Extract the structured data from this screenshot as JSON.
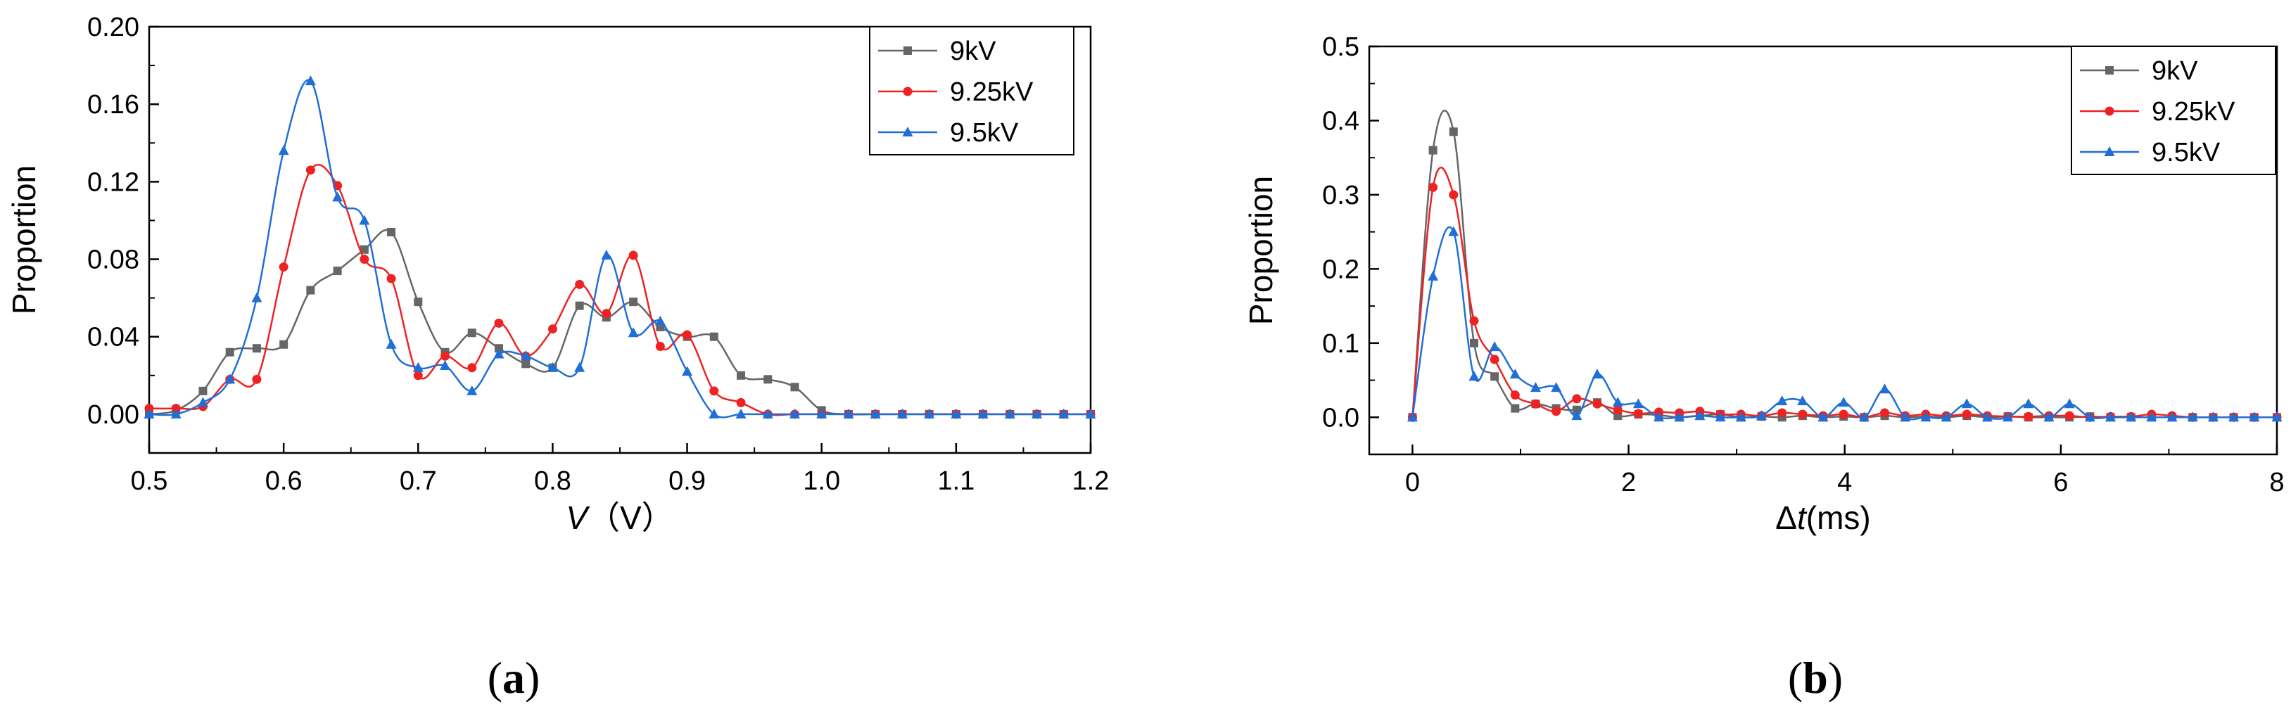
{
  "chart_data": [
    {
      "panel_label": "(a)",
      "panel_letter": "a",
      "type": "line",
      "xlabel_italic": "V",
      "xlabel_unit": "（V）",
      "ylabel": "Proportion",
      "xlim": [
        0.5,
        1.2
      ],
      "ylim": [
        -0.02,
        0.2
      ],
      "xticks": [
        0.5,
        0.6,
        0.7,
        0.8,
        0.9,
        1.0,
        1.1,
        1.2
      ],
      "xtick_labels": [
        "0.5",
        "0.6",
        "0.7",
        "0.8",
        "0.9",
        "1.0",
        "1.1",
        "1.2"
      ],
      "yticks": [
        0.0,
        0.04,
        0.08,
        0.12,
        0.16,
        0.2
      ],
      "ytick_labels": [
        "0.00",
        "0.04",
        "0.08",
        "0.12",
        "0.16",
        "0.20"
      ],
      "legend_position": "top-right",
      "series": [
        {
          "name": "9kV",
          "color": "#666666",
          "marker": "square",
          "x": [
            0.5,
            0.52,
            0.54,
            0.56,
            0.58,
            0.6,
            0.62,
            0.64,
            0.66,
            0.68,
            0.7,
            0.72,
            0.74,
            0.76,
            0.78,
            0.8,
            0.82,
            0.84,
            0.86,
            0.88,
            0.9,
            0.92,
            0.94,
            0.96,
            0.98,
            1.0,
            1.02,
            1.04,
            1.06,
            1.08,
            1.1,
            1.12,
            1.14,
            1.16,
            1.18,
            1.2
          ],
          "y": [
            0.0,
            0.002,
            0.012,
            0.032,
            0.034,
            0.036,
            0.064,
            0.074,
            0.085,
            0.094,
            0.058,
            0.032,
            0.042,
            0.034,
            0.026,
            0.024,
            0.056,
            0.05,
            0.058,
            0.045,
            0.04,
            0.04,
            0.02,
            0.018,
            0.014,
            0.002,
            0,
            0,
            0,
            0,
            0,
            0,
            0,
            0,
            0,
            0
          ]
        },
        {
          "name": "9.25kV",
          "color": "#ee2222",
          "marker": "circle",
          "x": [
            0.5,
            0.52,
            0.54,
            0.56,
            0.58,
            0.6,
            0.62,
            0.64,
            0.66,
            0.68,
            0.7,
            0.72,
            0.74,
            0.76,
            0.78,
            0.8,
            0.82,
            0.84,
            0.86,
            0.88,
            0.9,
            0.92,
            0.94,
            0.96,
            0.98,
            1.0,
            1.02,
            1.04,
            1.06,
            1.08,
            1.1,
            1.12,
            1.14,
            1.16,
            1.18,
            1.2
          ],
          "y": [
            0.003,
            0.003,
            0.004,
            0.018,
            0.018,
            0.076,
            0.126,
            0.118,
            0.08,
            0.07,
            0.02,
            0.03,
            0.024,
            0.047,
            0.03,
            0.044,
            0.067,
            0.052,
            0.082,
            0.035,
            0.041,
            0.012,
            0.006,
            0,
            0,
            0,
            0,
            0,
            0,
            0,
            0,
            0,
            0,
            0,
            0,
            0
          ]
        },
        {
          "name": "9.5kV",
          "color": "#1f6fd6",
          "marker": "triangle",
          "x": [
            0.5,
            0.52,
            0.54,
            0.56,
            0.58,
            0.6,
            0.62,
            0.64,
            0.66,
            0.68,
            0.7,
            0.72,
            0.74,
            0.76,
            0.78,
            0.8,
            0.82,
            0.84,
            0.86,
            0.88,
            0.9,
            0.92,
            0.94,
            0.96,
            0.98,
            1.0,
            1.02,
            1.04,
            1.06,
            1.08,
            1.1,
            1.12,
            1.14,
            1.16,
            1.18,
            1.2
          ],
          "y": [
            0.0,
            0.0,
            0.006,
            0.018,
            0.06,
            0.136,
            0.172,
            0.112,
            0.1,
            0.036,
            0.024,
            0.025,
            0.012,
            0.031,
            0.03,
            0.024,
            0.024,
            0.082,
            0.042,
            0.048,
            0.022,
            0.0,
            0,
            0,
            0,
            0,
            0,
            0,
            0,
            0,
            0,
            0,
            0,
            0,
            0,
            0
          ]
        }
      ]
    },
    {
      "panel_label": "(b)",
      "panel_letter": "b",
      "type": "line",
      "xlabel_italic": "t",
      "xlabel_prefix": "Δ",
      "xlabel_unit": "(ms)",
      "ylabel": "Proportion",
      "xlim": [
        -0.4,
        8
      ],
      "ylim": [
        -0.05,
        0.5
      ],
      "xticks": [
        0,
        2,
        4,
        6,
        8
      ],
      "xtick_labels": [
        "0",
        "2",
        "4",
        "6",
        "8"
      ],
      "yticks": [
        0.0,
        0.1,
        0.2,
        0.3,
        0.4,
        0.5
      ],
      "ytick_labels": [
        "0.0",
        "0.1",
        "0.2",
        "0.3",
        "0.4",
        "0.5"
      ],
      "legend_position": "top-right",
      "series": [
        {
          "name": "9kV",
          "color": "#666666",
          "marker": "square",
          "x": [
            0,
            0.19,
            0.38,
            0.57,
            0.76,
            0.95,
            1.14,
            1.33,
            1.52,
            1.71,
            1.9,
            2.09,
            2.28,
            2.47,
            2.66,
            2.85,
            3.04,
            3.23,
            3.42,
            3.61,
            3.8,
            3.99,
            4.18,
            4.37,
            4.56,
            4.75,
            4.94,
            5.13,
            5.32,
            5.51,
            5.7,
            5.89,
            6.08,
            6.27,
            6.46,
            6.65,
            6.84,
            7.03,
            7.22,
            7.41,
            7.6,
            7.79,
            8.0
          ],
          "y": [
            0,
            0.36,
            0.385,
            0.1,
            0.055,
            0.012,
            0.018,
            0.012,
            0.01,
            0.02,
            0.002,
            0.004,
            0.003,
            0,
            0.002,
            0.004,
            0,
            0.001,
            0,
            0.002,
            0,
            0.001,
            0,
            0.002,
            0,
            0.001,
            0,
            0.002,
            0,
            0.001,
            0,
            0,
            0,
            0.001,
            0,
            0,
            0,
            0,
            0,
            0,
            0,
            0,
            0
          ]
        },
        {
          "name": "9.25kV",
          "color": "#ee2222",
          "marker": "circle",
          "x": [
            0,
            0.19,
            0.38,
            0.57,
            0.76,
            0.95,
            1.14,
            1.33,
            1.52,
            1.71,
            1.9,
            2.09,
            2.28,
            2.47,
            2.66,
            2.85,
            3.04,
            3.23,
            3.42,
            3.61,
            3.8,
            3.99,
            4.18,
            4.37,
            4.56,
            4.75,
            4.94,
            5.13,
            5.32,
            5.51,
            5.7,
            5.89,
            6.08,
            6.27,
            6.46,
            6.65,
            6.84,
            7.03,
            7.22,
            7.41,
            7.6,
            7.79,
            8.0
          ],
          "y": [
            0,
            0.31,
            0.3,
            0.13,
            0.078,
            0.03,
            0.018,
            0.008,
            0.025,
            0.018,
            0.01,
            0.005,
            0.007,
            0.006,
            0.008,
            0.004,
            0.004,
            0.002,
            0.006,
            0.004,
            0.002,
            0.004,
            0,
            0.006,
            0.002,
            0.004,
            0.002,
            0.004,
            0.002,
            0.001,
            0.001,
            0.002,
            0.002,
            0,
            0.001,
            0.001,
            0.004,
            0.002,
            0,
            0,
            0,
            0,
            0
          ]
        },
        {
          "name": "9.5kV",
          "color": "#1f6fd6",
          "marker": "triangle",
          "x": [
            0,
            0.19,
            0.38,
            0.57,
            0.76,
            0.95,
            1.14,
            1.33,
            1.52,
            1.71,
            1.9,
            2.09,
            2.28,
            2.47,
            2.66,
            2.85,
            3.04,
            3.23,
            3.42,
            3.61,
            3.8,
            3.99,
            4.18,
            4.37,
            4.56,
            4.75,
            4.94,
            5.13,
            5.32,
            5.51,
            5.7,
            5.89,
            6.08,
            6.27,
            6.46,
            6.65,
            6.84,
            7.03,
            7.22,
            7.41,
            7.6,
            7.79,
            8.0
          ],
          "y": [
            0,
            0.19,
            0.25,
            0.055,
            0.095,
            0.058,
            0.04,
            0.04,
            0.002,
            0.058,
            0.02,
            0.018,
            0,
            0,
            0.002,
            0,
            0,
            0.002,
            0.022,
            0.022,
            0,
            0.02,
            0,
            0.038,
            0,
            0,
            0,
            0.018,
            0,
            0,
            0.018,
            0,
            0.018,
            0,
            0,
            0,
            0,
            0,
            0,
            0,
            0,
            0,
            0
          ]
        }
      ]
    }
  ]
}
